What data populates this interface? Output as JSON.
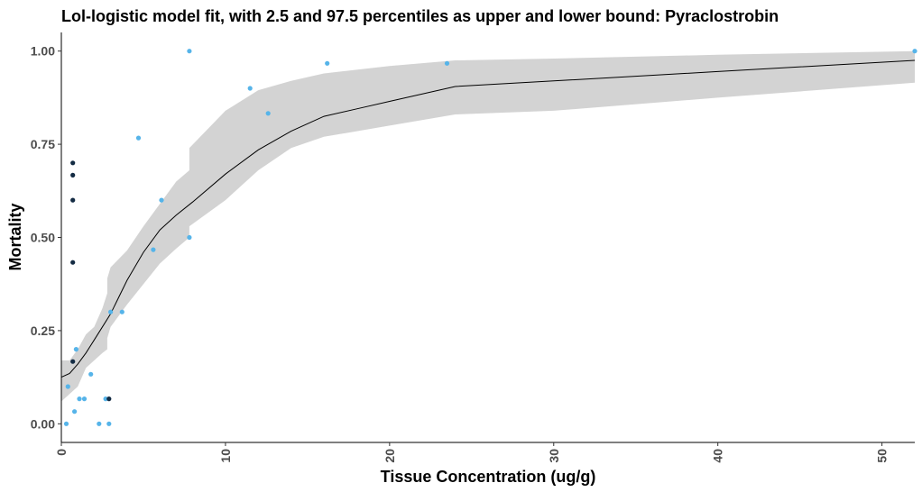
{
  "chart_data": {
    "type": "scatter",
    "title": "Lol-logistic model fit, with 2.5 and 97.5 percentiles as upper and lower bound: Pyraclostrobin",
    "xlabel": "Tissue Concentration (ug/g)",
    "ylabel": "Mortality",
    "xlim": [
      0,
      52
    ],
    "ylim": [
      -0.05,
      1.05
    ],
    "xticks": [
      0,
      10,
      20,
      30,
      40,
      50
    ],
    "xtick_labels": [
      "0",
      "10",
      "20",
      "30",
      "40",
      "50"
    ],
    "yticks": [
      0,
      0.25,
      0.5,
      0.75,
      1
    ],
    "ytick_labels": [
      "0.00",
      "0.25",
      "0.50",
      "0.75",
      "1.00"
    ],
    "grid": false,
    "legend": "none",
    "colors": {
      "light_points": "#56B4E9",
      "dark_points": "#132B43",
      "ribbon": "#d3d3d3",
      "fit_line": "#000000"
    },
    "fit_line": {
      "x": [
        0,
        0.5,
        1,
        1.5,
        2,
        2.5,
        3,
        4,
        5,
        6,
        7,
        8,
        10,
        12,
        14,
        16,
        18,
        20,
        24,
        30,
        40,
        52
      ],
      "y": [
        0.125,
        0.135,
        0.16,
        0.19,
        0.225,
        0.26,
        0.295,
        0.385,
        0.46,
        0.52,
        0.56,
        0.595,
        0.67,
        0.735,
        0.785,
        0.825,
        0.845,
        0.865,
        0.905,
        0.92,
        0.945,
        0.975
      ]
    },
    "ribbon": {
      "x": [
        0,
        0.5,
        1,
        1.5,
        2,
        2.5,
        2.8,
        2.8,
        3,
        4,
        5,
        6,
        7,
        7.8,
        7.8,
        10,
        12,
        14,
        16,
        18,
        20,
        24,
        30,
        40,
        52
      ],
      "upper": [
        0.17,
        0.17,
        0.2,
        0.24,
        0.26,
        0.31,
        0.35,
        0.39,
        0.42,
        0.465,
        0.53,
        0.59,
        0.65,
        0.68,
        0.74,
        0.84,
        0.895,
        0.92,
        0.94,
        0.95,
        0.96,
        0.975,
        0.98,
        0.99,
        1.0
      ],
      "lower": [
        0.06,
        0.08,
        0.1,
        0.15,
        0.17,
        0.19,
        0.2,
        0.23,
        0.26,
        0.32,
        0.375,
        0.43,
        0.47,
        0.5,
        0.53,
        0.6,
        0.68,
        0.74,
        0.77,
        0.785,
        0.8,
        0.83,
        0.84,
        0.875,
        0.915
      ]
    },
    "series": [
      {
        "color": "#56B4E9",
        "points": [
          {
            "x": 0.3,
            "y": 0.0
          },
          {
            "x": 0.4,
            "y": 0.1
          },
          {
            "x": 0.8,
            "y": 0.033
          },
          {
            "x": 0.9,
            "y": 0.2
          },
          {
            "x": 1.1,
            "y": 0.067
          },
          {
            "x": 1.4,
            "y": 0.067
          },
          {
            "x": 1.8,
            "y": 0.133
          },
          {
            "x": 2.3,
            "y": 0.0
          },
          {
            "x": 2.9,
            "y": 0.0
          },
          {
            "x": 2.7,
            "y": 0.067
          },
          {
            "x": 3.0,
            "y": 0.3
          },
          {
            "x": 3.7,
            "y": 0.3
          },
          {
            "x": 4.7,
            "y": 0.767
          },
          {
            "x": 5.6,
            "y": 0.467
          },
          {
            "x": 6.1,
            "y": 0.6
          },
          {
            "x": 7.8,
            "y": 0.5
          },
          {
            "x": 7.8,
            "y": 1.0
          },
          {
            "x": 11.5,
            "y": 0.9
          },
          {
            "x": 12.6,
            "y": 0.833
          },
          {
            "x": 16.2,
            "y": 0.967
          },
          {
            "x": 23.5,
            "y": 0.967
          },
          {
            "x": 52.0,
            "y": 1.0
          }
        ]
      },
      {
        "color": "#132B43",
        "points": [
          {
            "x": 0.7,
            "y": 0.7
          },
          {
            "x": 0.7,
            "y": 0.667
          },
          {
            "x": 0.7,
            "y": 0.6
          },
          {
            "x": 0.7,
            "y": 0.433
          },
          {
            "x": 0.7,
            "y": 0.167
          },
          {
            "x": 2.9,
            "y": 0.067
          }
        ]
      }
    ]
  }
}
